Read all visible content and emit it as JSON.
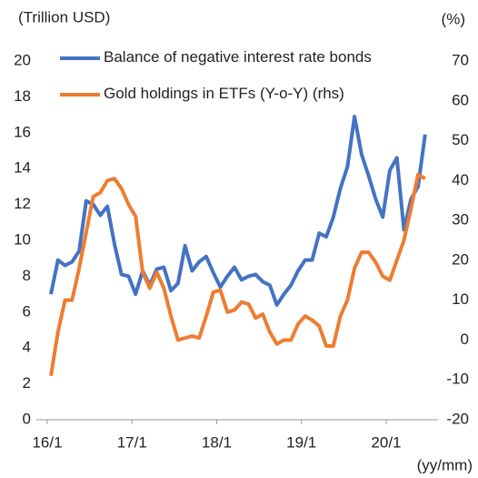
{
  "chart_data": {
    "type": "line",
    "y_label": "(Trillion USD)",
    "y2_label": "(%)",
    "x_label": "(yy/mm)",
    "categories": [
      "16/1",
      null,
      null,
      null,
      null,
      null,
      null,
      null,
      null,
      null,
      null,
      null,
      "17/1",
      null,
      null,
      null,
      null,
      null,
      null,
      null,
      null,
      null,
      null,
      null,
      "18/1",
      null,
      null,
      null,
      null,
      null,
      null,
      null,
      null,
      null,
      null,
      null,
      "19/1",
      null,
      null,
      null,
      null,
      null,
      null,
      null,
      null,
      null,
      null,
      null,
      "20/1",
      null,
      null,
      null,
      null,
      null
    ],
    "series": [
      {
        "name": "Balance of negative interest rate bonds",
        "color": "#4472c4",
        "values": [
          7.0,
          8.9,
          8.6,
          8.8,
          9.4,
          12.2,
          12.0,
          11.4,
          11.9,
          9.8,
          8.1,
          8.0,
          7.0,
          8.3,
          7.5,
          8.4,
          8.5,
          7.2,
          7.6,
          9.7,
          8.3,
          8.8,
          9.1,
          8.2,
          7.4,
          8.0,
          8.5,
          7.8,
          8.0,
          8.1,
          7.7,
          7.5,
          6.4,
          7.0,
          7.5,
          8.3,
          8.9,
          8.9,
          10.4,
          10.2,
          11.3,
          12.9,
          14.1,
          16.9,
          14.8,
          13.6,
          12.3,
          11.3,
          13.9,
          14.6,
          10.6,
          12.3,
          13.0,
          15.9
        ]
      },
      {
        "name": "Gold holdings in ETFs (Y-o-Y) (rhs)",
        "color": "#ed7d31",
        "axis": "y2",
        "values": [
          -9,
          2,
          10,
          10,
          18,
          27,
          36,
          37,
          40,
          40.5,
          38,
          34,
          31,
          17,
          13,
          17,
          13,
          6,
          0,
          0.5,
          1,
          0.5,
          6,
          12,
          12.5,
          7,
          7.5,
          9.5,
          9,
          5.5,
          6.5,
          2,
          -1,
          0,
          0,
          4,
          6,
          5,
          3.5,
          -1.5,
          -1.5,
          6,
          10,
          18,
          22,
          22,
          19.5,
          16,
          15,
          20,
          25,
          33,
          41.5,
          40.5
        ]
      }
    ],
    "ylim": [
      0,
      20
    ],
    "yticks": [
      0,
      2,
      4,
      6,
      8,
      10,
      12,
      14,
      16,
      18,
      20
    ],
    "y2lim": [
      -20,
      70
    ],
    "y2ticks": [
      -20,
      -10,
      0,
      10,
      20,
      30,
      40,
      50,
      60,
      70
    ]
  }
}
